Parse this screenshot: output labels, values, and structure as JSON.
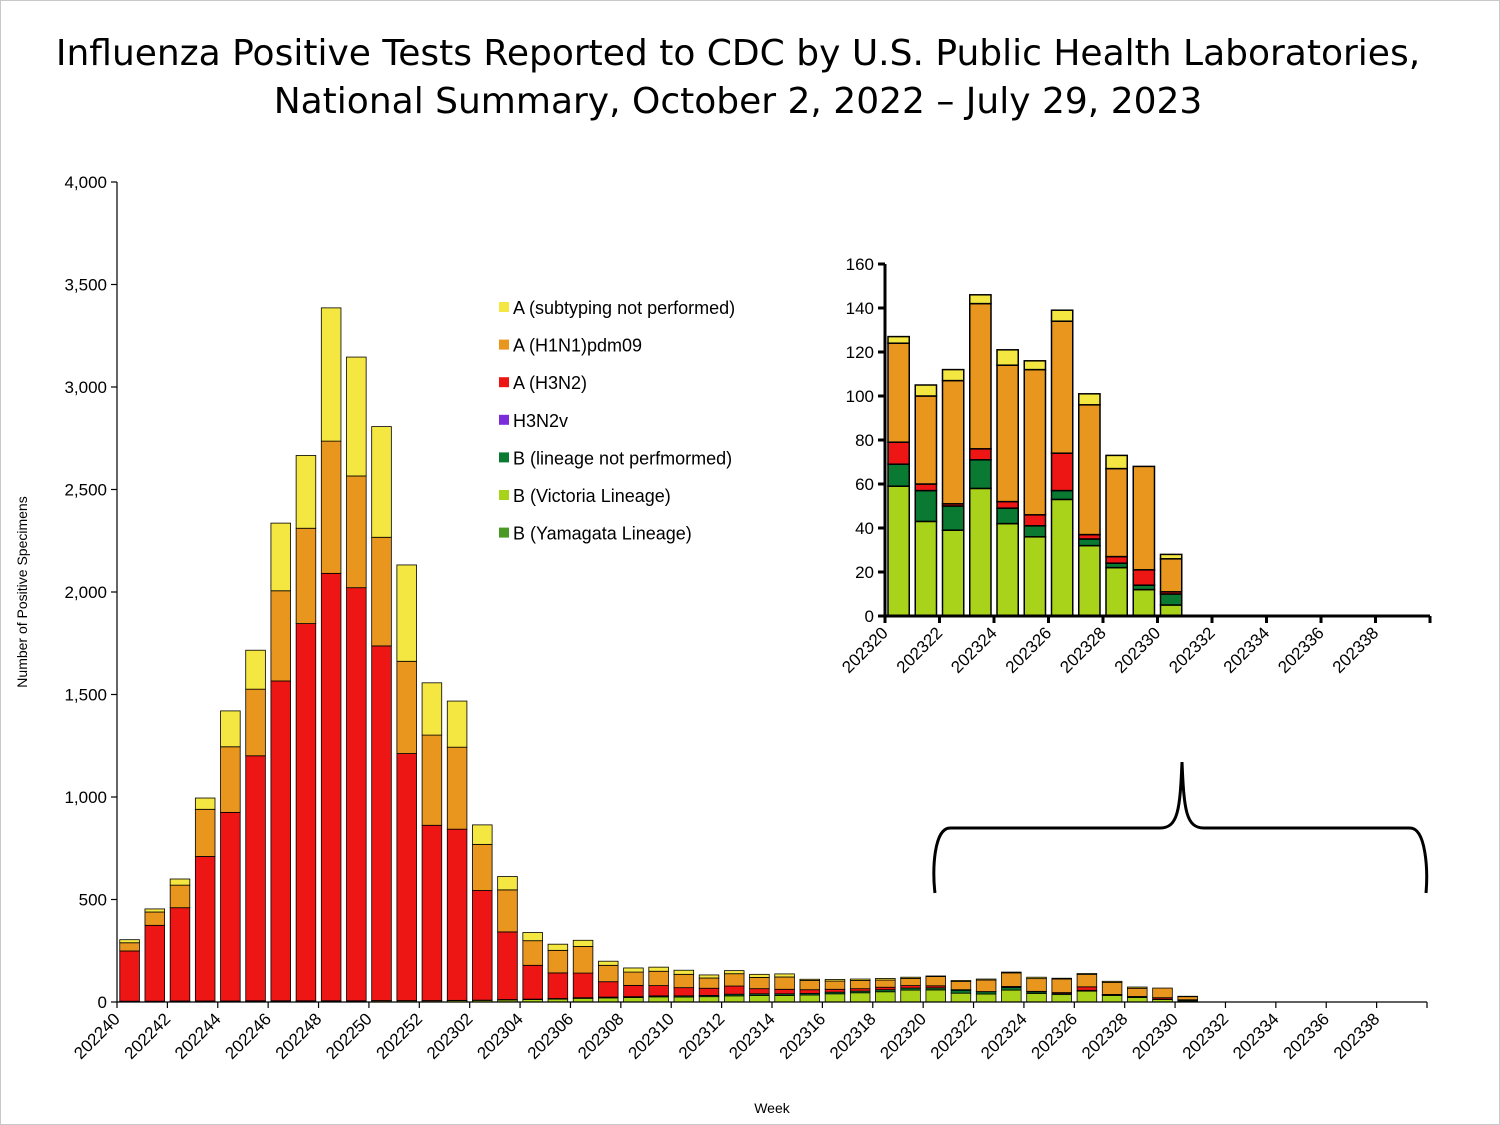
{
  "title": {
    "line1": "Influenza Positive Tests Reported to CDC by U.S. Public Health Laboratories,",
    "line2": "National Summary, October 2, 2022 – July 29, 2023"
  },
  "colors": {
    "a_unsubtyped": "#f5e742",
    "a_h1n1": "#e8961e",
    "a_h3n2": "#ee1515",
    "h3n2v": "#7b2ddb",
    "b_lineage_not_performed": "#0a7a32",
    "b_victoria": "#a9d21a",
    "b_yamagata": "#4a9a24"
  },
  "chart_data": [
    {
      "type": "bar",
      "stacked": true,
      "title": "",
      "xlabel": "Week",
      "ylabel": "Number of Positive Specimens",
      "ylim": [
        0,
        4000
      ],
      "ytick_values": [
        0,
        500,
        1000,
        1500,
        2000,
        2500,
        3000,
        3500,
        4000
      ],
      "ytick_labels": [
        "0",
        "500",
        "1,000",
        "1,500",
        "2,000",
        "2,500",
        "3,000",
        "3,500",
        "4,000"
      ],
      "tick_labels": [
        "202240",
        "202242",
        "202244",
        "202246",
        "202248",
        "202250",
        "202252",
        "202302",
        "202304",
        "202306",
        "202308",
        "202310",
        "202312",
        "202314",
        "202316",
        "202318",
        "202320",
        "202322",
        "202324",
        "202326",
        "202328",
        "202330",
        "202332",
        "202334",
        "202336",
        "202338"
      ],
      "categories": [
        "202240",
        "202241",
        "202242",
        "202243",
        "202244",
        "202245",
        "202246",
        "202247",
        "202248",
        "202249",
        "202250",
        "202251",
        "202252",
        "202301",
        "202302",
        "202303",
        "202304",
        "202305",
        "202306",
        "202307",
        "202308",
        "202309",
        "202310",
        "202311",
        "202312",
        "202313",
        "202314",
        "202315",
        "202316",
        "202317",
        "202318",
        "202319",
        "202320",
        "202321",
        "202322",
        "202323",
        "202324",
        "202325",
        "202326",
        "202327",
        "202328",
        "202329",
        "202330",
        "202331",
        "202332",
        "202333",
        "202334",
        "202335",
        "202336",
        "202337",
        "202338",
        "202339"
      ],
      "series": [
        {
          "name": "B (Yamagata Lineage)",
          "color_key": "b_yamagata",
          "values": [
            0,
            0,
            0,
            0,
            0,
            0,
            0,
            0,
            0,
            0,
            0,
            0,
            0,
            0,
            0,
            0,
            0,
            0,
            0,
            0,
            0,
            0,
            0,
            0,
            0,
            0,
            0,
            0,
            0,
            0,
            0,
            0,
            0,
            0,
            0,
            0,
            0,
            0,
            0,
            0,
            0,
            0,
            0,
            0,
            0,
            0,
            0,
            0,
            0,
            0,
            0,
            0
          ]
        },
        {
          "name": "B (Victoria Lineage)",
          "color_key": "b_victoria",
          "values": [
            3,
            3,
            4,
            4,
            4,
            5,
            5,
            5,
            5,
            5,
            6,
            6,
            6,
            7,
            8,
            10,
            12,
            14,
            18,
            20,
            22,
            25,
            24,
            26,
            30,
            32,
            32,
            34,
            40,
            45,
            50,
            58,
            59,
            43,
            39,
            58,
            42,
            36,
            53,
            32,
            22,
            12,
            5,
            0,
            0,
            0,
            0,
            0,
            0,
            0,
            0,
            0
          ]
        },
        {
          "name": "B (lineage not perfmormed)",
          "color_key": "b_lineage_not_performed",
          "values": [
            1,
            1,
            1,
            1,
            1,
            1,
            1,
            1,
            1,
            1,
            1,
            1,
            1,
            1,
            1,
            2,
            2,
            3,
            3,
            4,
            4,
            5,
            6,
            6,
            8,
            8,
            8,
            8,
            8,
            8,
            10,
            10,
            10,
            14,
            11,
            13,
            7,
            5,
            4,
            3,
            2,
            2,
            5,
            0,
            0,
            0,
            0,
            0,
            0,
            0,
            0,
            0
          ]
        },
        {
          "name": "H3N2v",
          "color_key": "h3n2v",
          "values": [
            0,
            0,
            0,
            0,
            0,
            0,
            0,
            0,
            0,
            0,
            0,
            0,
            0,
            0,
            0,
            0,
            0,
            0,
            0,
            0,
            0,
            0,
            0,
            0,
            0,
            0,
            0,
            0,
            0,
            0,
            0,
            0,
            0,
            0,
            0,
            0,
            0,
            0,
            0,
            0,
            0,
            0,
            0,
            0,
            0,
            0,
            0,
            0,
            0,
            0,
            0,
            0
          ]
        },
        {
          "name": "A (H3N2)",
          "color_key": "a_h3n2",
          "values": [
            245,
            370,
            455,
            705,
            920,
            1195,
            1560,
            1840,
            2085,
            2015,
            1730,
            1205,
            855,
            835,
            535,
            330,
            165,
            125,
            120,
            75,
            55,
            50,
            40,
            35,
            40,
            25,
            22,
            18,
            14,
            12,
            12,
            12,
            10,
            3,
            1,
            5,
            3,
            5,
            17,
            2,
            3,
            7,
            1,
            0,
            0,
            0,
            0,
            0,
            0,
            0,
            0,
            0
          ]
        },
        {
          "name": "A (H1N1)pdm09",
          "color_key": "a_h1n1",
          "values": [
            40,
            65,
            110,
            230,
            320,
            325,
            440,
            465,
            645,
            545,
            530,
            450,
            440,
            400,
            225,
            205,
            120,
            110,
            130,
            80,
            65,
            70,
            65,
            50,
            60,
            55,
            60,
            45,
            40,
            40,
            35,
            35,
            45,
            40,
            56,
            66,
            62,
            66,
            60,
            59,
            40,
            47,
            15,
            0,
            0,
            0,
            0,
            0,
            0,
            0,
            0,
            0
          ]
        },
        {
          "name": "A (subtyping not performed)",
          "color_key": "a_unsubtyped",
          "values": [
            15,
            15,
            30,
            55,
            175,
            190,
            330,
            355,
            650,
            580,
            540,
            470,
            255,
            225,
            95,
            65,
            40,
            30,
            30,
            20,
            20,
            20,
            20,
            15,
            15,
            15,
            15,
            6,
            8,
            7,
            8,
            6,
            3,
            5,
            5,
            4,
            7,
            4,
            5,
            5,
            6,
            0,
            2,
            0,
            0,
            0,
            0,
            0,
            0,
            0,
            0,
            0
          ]
        }
      ]
    },
    {
      "type": "bar",
      "stacked": true,
      "title": "",
      "xlabel": "",
      "ylabel": "",
      "ylim": [
        0,
        160
      ],
      "ytick_values": [
        0,
        20,
        40,
        60,
        80,
        100,
        120,
        140,
        160
      ],
      "ytick_labels": [
        "0",
        "20",
        "40",
        "60",
        "80",
        "100",
        "120",
        "140",
        "160"
      ],
      "tick_labels": [
        "202320",
        "202322",
        "202324",
        "202326",
        "202328",
        "202330",
        "202332",
        "202334",
        "202336",
        "202338"
      ],
      "categories": [
        "202320",
        "202321",
        "202322",
        "202323",
        "202324",
        "202325",
        "202326",
        "202327",
        "202328",
        "202329",
        "202330",
        "202331",
        "202332",
        "202333",
        "202334",
        "202335",
        "202336",
        "202337",
        "202338",
        "202339"
      ],
      "series": [
        {
          "name": "B (Yamagata Lineage)",
          "color_key": "b_yamagata",
          "values": [
            0,
            0,
            0,
            0,
            0,
            0,
            0,
            0,
            0,
            0,
            0,
            0,
            0,
            0,
            0,
            0,
            0,
            0,
            0,
            0
          ]
        },
        {
          "name": "B (Victoria Lineage)",
          "color_key": "b_victoria",
          "values": [
            59,
            43,
            39,
            58,
            42,
            36,
            53,
            32,
            22,
            12,
            5,
            0,
            0,
            0,
            0,
            0,
            0,
            0,
            0,
            0
          ]
        },
        {
          "name": "B (lineage not perfmormed)",
          "color_key": "b_lineage_not_performed",
          "values": [
            10,
            14,
            11,
            13,
            7,
            5,
            4,
            3,
            2,
            2,
            5,
            0,
            0,
            0,
            0,
            0,
            0,
            0,
            0,
            0
          ]
        },
        {
          "name": "H3N2v",
          "color_key": "h3n2v",
          "values": [
            0,
            0,
            0,
            0,
            0,
            0,
            0,
            0,
            0,
            0,
            0,
            0,
            0,
            0,
            0,
            0,
            0,
            0,
            0,
            0
          ]
        },
        {
          "name": "A (H3N2)",
          "color_key": "a_h3n2",
          "values": [
            10,
            3,
            1,
            5,
            3,
            5,
            17,
            2,
            3,
            7,
            1,
            0,
            0,
            0,
            0,
            0,
            0,
            0,
            0,
            0
          ]
        },
        {
          "name": "A (H1N1)pdm09",
          "color_key": "a_h1n1",
          "values": [
            45,
            40,
            56,
            66,
            62,
            66,
            60,
            59,
            40,
            47,
            15,
            0,
            0,
            0,
            0,
            0,
            0,
            0,
            0,
            0
          ]
        },
        {
          "name": "A (subtyping not performed)",
          "color_key": "a_unsubtyped",
          "values": [
            3,
            5,
            5,
            4,
            7,
            4,
            5,
            5,
            6,
            0,
            2,
            0,
            0,
            0,
            0,
            0,
            0,
            0,
            0,
            0
          ]
        }
      ]
    }
  ],
  "legend": {
    "placement": "top-center",
    "items": [
      {
        "label": "A (subtyping not performed)",
        "color_key": "a_unsubtyped"
      },
      {
        "label": "A (H1N1)pdm09",
        "color_key": "a_h1n1"
      },
      {
        "label": "A (H3N2)",
        "color_key": "a_h3n2"
      },
      {
        "label": "H3N2v",
        "color_key": "h3n2v"
      },
      {
        "label": "B (lineage not perfmormed)",
        "color_key": "b_lineage_not_performed"
      },
      {
        "label": "B (Victoria Lineage)",
        "color_key": "b_victoria"
      },
      {
        "label": "B (Yamagata Lineage)",
        "color_key": "b_yamagata"
      }
    ]
  }
}
